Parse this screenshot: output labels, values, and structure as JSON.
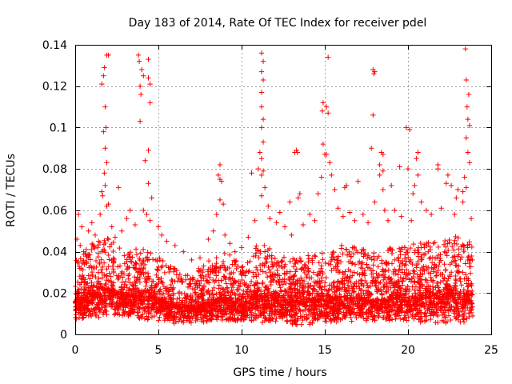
{
  "chart_data": {
    "type": "scatter",
    "title": "Day 183 of 2014, Rate Of TEC Index for receiver pdel",
    "xlabel": "GPS time / hours",
    "ylabel": "ROTI / TECUs",
    "xlim": [
      0,
      25
    ],
    "ylim": [
      0,
      0.14
    ],
    "xticks": [
      0,
      5,
      10,
      15,
      20,
      25
    ],
    "yticks": [
      0,
      0.02,
      0.04,
      0.06,
      0.08,
      0.1,
      0.12,
      0.14
    ],
    "xtick_labels": [
      "0",
      "5",
      "10",
      "15",
      "20",
      "25"
    ],
    "ytick_labels": [
      "0",
      "0.02",
      "0.04",
      "0.06",
      "0.08",
      "0.1",
      "0.12",
      "0.14"
    ],
    "grid": true,
    "marker": "+",
    "color": "#ff0000",
    "points": [
      [
        1.6,
        0.121
      ],
      [
        1.7,
        0.125
      ],
      [
        1.75,
        0.129
      ],
      [
        1.9,
        0.135
      ],
      [
        2.0,
        0.135
      ],
      [
        1.8,
        0.11
      ],
      [
        1.7,
        0.098
      ],
      [
        1.85,
        0.1
      ],
      [
        1.8,
        0.09
      ],
      [
        1.9,
        0.083
      ],
      [
        1.75,
        0.078
      ],
      [
        1.8,
        0.072
      ],
      [
        1.6,
        0.069
      ],
      [
        1.65,
        0.067
      ],
      [
        1.9,
        0.062
      ],
      [
        2.0,
        0.063
      ],
      [
        2.6,
        0.071
      ],
      [
        1.5,
        0.058
      ],
      [
        3.8,
        0.135
      ],
      [
        3.85,
        0.132
      ],
      [
        4.0,
        0.128
      ],
      [
        4.1,
        0.125
      ],
      [
        3.9,
        0.12
      ],
      [
        3.95,
        0.116
      ],
      [
        3.9,
        0.103
      ],
      [
        4.4,
        0.133
      ],
      [
        4.4,
        0.124
      ],
      [
        4.5,
        0.121
      ],
      [
        4.5,
        0.112
      ],
      [
        4.4,
        0.089
      ],
      [
        4.2,
        0.084
      ],
      [
        4.4,
        0.073
      ],
      [
        4.6,
        0.066
      ],
      [
        4.3,
        0.058
      ],
      [
        4.5,
        0.055
      ],
      [
        4.1,
        0.06
      ],
      [
        8.7,
        0.082
      ],
      [
        8.6,
        0.077
      ],
      [
        8.7,
        0.075
      ],
      [
        8.8,
        0.074
      ],
      [
        8.7,
        0.065
      ],
      [
        8.9,
        0.063
      ],
      [
        8.5,
        0.058
      ],
      [
        11.2,
        0.136
      ],
      [
        11.3,
        0.132
      ],
      [
        11.2,
        0.127
      ],
      [
        11.3,
        0.123
      ],
      [
        11.2,
        0.117
      ],
      [
        11.2,
        0.11
      ],
      [
        11.3,
        0.104
      ],
      [
        11.2,
        0.1
      ],
      [
        11.3,
        0.093
      ],
      [
        11.1,
        0.088
      ],
      [
        11.2,
        0.085
      ],
      [
        11.3,
        0.079
      ],
      [
        11.2,
        0.077
      ],
      [
        11.0,
        0.08
      ],
      [
        10.6,
        0.078
      ],
      [
        11.4,
        0.071
      ],
      [
        11.2,
        0.067
      ],
      [
        11.6,
        0.062
      ],
      [
        13.3,
        0.089
      ],
      [
        13.35,
        0.088
      ],
      [
        13.2,
        0.088
      ],
      [
        13.5,
        0.068
      ],
      [
        13.4,
        0.066
      ],
      [
        12.3,
        0.059
      ],
      [
        12.9,
        0.064
      ],
      [
        14.9,
        0.112
      ],
      [
        14.85,
        0.108
      ],
      [
        15.1,
        0.11
      ],
      [
        15.2,
        0.107
      ],
      [
        14.9,
        0.092
      ],
      [
        15.0,
        0.087
      ],
      [
        15.1,
        0.087
      ],
      [
        15.3,
        0.083
      ],
      [
        14.8,
        0.076
      ],
      [
        15.2,
        0.134
      ],
      [
        15.4,
        0.077
      ],
      [
        15.6,
        0.07
      ],
      [
        14.6,
        0.068
      ],
      [
        16.3,
        0.072
      ],
      [
        16.2,
        0.071
      ],
      [
        16.5,
        0.059
      ],
      [
        17.0,
        0.074
      ],
      [
        17.9,
        0.128
      ],
      [
        17.95,
        0.126
      ],
      [
        18.0,
        0.127
      ],
      [
        17.9,
        0.106
      ],
      [
        17.8,
        0.09
      ],
      [
        18.4,
        0.088
      ],
      [
        18.5,
        0.087
      ],
      [
        18.3,
        0.082
      ],
      [
        18.5,
        0.079
      ],
      [
        18.3,
        0.077
      ],
      [
        18.5,
        0.07
      ],
      [
        18.0,
        0.064
      ],
      [
        18.6,
        0.06
      ],
      [
        19.0,
        0.072
      ],
      [
        19.5,
        0.081
      ],
      [
        20.1,
        0.099
      ],
      [
        19.9,
        0.1
      ],
      [
        20.0,
        0.08
      ],
      [
        20.6,
        0.088
      ],
      [
        20.5,
        0.085
      ],
      [
        20.6,
        0.077
      ],
      [
        20.4,
        0.072
      ],
      [
        20.3,
        0.068
      ],
      [
        20.8,
        0.064
      ],
      [
        21.8,
        0.082
      ],
      [
        21.8,
        0.08
      ],
      [
        22.4,
        0.077
      ],
      [
        22.3,
        0.073
      ],
      [
        22.6,
        0.072
      ],
      [
        23.0,
        0.07
      ],
      [
        23.3,
        0.064
      ],
      [
        23.45,
        0.138
      ],
      [
        23.5,
        0.123
      ],
      [
        23.65,
        0.116
      ],
      [
        23.55,
        0.11
      ],
      [
        23.6,
        0.104
      ],
      [
        23.7,
        0.101
      ],
      [
        23.5,
        0.095
      ],
      [
        23.6,
        0.088
      ],
      [
        23.7,
        0.083
      ],
      [
        23.4,
        0.076
      ],
      [
        23.5,
        0.071
      ],
      [
        23.3,
        0.069
      ],
      [
        22.9,
        0.066
      ],
      [
        0.2,
        0.058
      ],
      [
        0.4,
        0.052
      ],
      [
        0.1,
        0.046
      ],
      [
        0.3,
        0.043
      ],
      [
        0.5,
        0.04
      ],
      [
        0.8,
        0.05
      ],
      [
        1.0,
        0.054
      ],
      [
        1.2,
        0.048
      ],
      [
        1.4,
        0.045
      ],
      [
        2.2,
        0.052
      ],
      [
        2.4,
        0.047
      ],
      [
        2.8,
        0.05
      ],
      [
        3.1,
        0.056
      ],
      [
        3.3,
        0.06
      ],
      [
        3.6,
        0.053
      ],
      [
        5.0,
        0.052
      ],
      [
        5.2,
        0.048
      ],
      [
        5.5,
        0.045
      ],
      [
        6.0,
        0.043
      ],
      [
        6.5,
        0.04
      ],
      [
        7.0,
        0.036
      ],
      [
        7.5,
        0.037
      ],
      [
        8.0,
        0.046
      ],
      [
        8.3,
        0.05
      ],
      [
        9.0,
        0.048
      ],
      [
        9.3,
        0.044
      ],
      [
        9.6,
        0.04
      ],
      [
        10.0,
        0.042
      ],
      [
        10.4,
        0.047
      ],
      [
        10.8,
        0.055
      ],
      [
        11.7,
        0.056
      ],
      [
        12.1,
        0.054
      ],
      [
        12.6,
        0.052
      ],
      [
        13.0,
        0.048
      ],
      [
        13.7,
        0.053
      ],
      [
        14.1,
        0.058
      ],
      [
        14.4,
        0.055
      ],
      [
        15.8,
        0.061
      ],
      [
        16.1,
        0.057
      ],
      [
        16.8,
        0.055
      ],
      [
        17.3,
        0.058
      ],
      [
        17.6,
        0.054
      ],
      [
        18.8,
        0.055
      ],
      [
        19.2,
        0.06
      ],
      [
        19.6,
        0.057
      ],
      [
        20.2,
        0.055
      ],
      [
        21.1,
        0.06
      ],
      [
        21.4,
        0.058
      ],
      [
        22.0,
        0.061
      ],
      [
        22.8,
        0.058
      ],
      [
        23.8,
        0.056
      ]
    ],
    "band": {
      "description": "dense noise floor of ROTI values covering the whole day",
      "x_range": [
        0,
        23.9
      ],
      "low": [
        [
          0,
          0.007
        ],
        [
          2,
          0.008
        ],
        [
          4,
          0.007
        ],
        [
          6,
          0.005
        ],
        [
          8,
          0.006
        ],
        [
          10,
          0.006
        ],
        [
          12,
          0.005
        ],
        [
          14,
          0.004
        ],
        [
          16,
          0.005
        ],
        [
          18,
          0.006
        ],
        [
          20,
          0.006
        ],
        [
          22,
          0.005
        ],
        [
          23.9,
          0.006
        ]
      ],
      "median": [
        [
          0,
          0.015
        ],
        [
          1,
          0.019
        ],
        [
          2,
          0.021
        ],
        [
          3,
          0.018
        ],
        [
          4,
          0.019
        ],
        [
          5,
          0.017
        ],
        [
          6,
          0.014
        ],
        [
          7,
          0.013
        ],
        [
          8,
          0.015
        ],
        [
          9,
          0.017
        ],
        [
          10,
          0.014
        ],
        [
          11,
          0.019
        ],
        [
          12,
          0.017
        ],
        [
          13,
          0.016
        ],
        [
          14,
          0.017
        ],
        [
          15,
          0.016
        ],
        [
          16,
          0.018
        ],
        [
          17,
          0.017
        ],
        [
          18,
          0.016
        ],
        [
          19,
          0.017
        ],
        [
          20,
          0.018
        ],
        [
          21,
          0.018
        ],
        [
          22,
          0.019
        ],
        [
          23,
          0.02
        ],
        [
          23.9,
          0.019
        ]
      ],
      "high": [
        [
          0,
          0.036
        ],
        [
          1,
          0.044
        ],
        [
          2,
          0.047
        ],
        [
          3,
          0.04
        ],
        [
          4,
          0.042
        ],
        [
          5,
          0.038
        ],
        [
          6,
          0.032
        ],
        [
          7,
          0.029
        ],
        [
          8,
          0.036
        ],
        [
          9,
          0.041
        ],
        [
          10,
          0.033
        ],
        [
          11,
          0.045
        ],
        [
          12,
          0.04
        ],
        [
          13,
          0.037
        ],
        [
          14,
          0.04
        ],
        [
          15,
          0.04
        ],
        [
          16,
          0.043
        ],
        [
          17,
          0.042
        ],
        [
          18,
          0.04
        ],
        [
          19,
          0.042
        ],
        [
          20,
          0.044
        ],
        [
          21,
          0.045
        ],
        [
          22,
          0.046
        ],
        [
          23,
          0.048
        ],
        [
          23.9,
          0.045
        ]
      ]
    }
  }
}
